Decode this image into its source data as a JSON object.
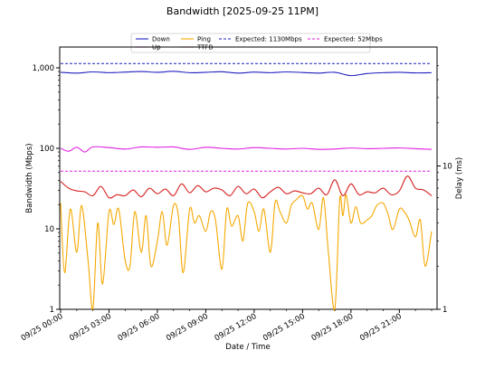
{
  "chart_data": {
    "type": "line",
    "title": "Bandwidth [2025-09-25 11PM]",
    "xlabel": "Date / Time",
    "ylabel_left": "Bandwidth (Mbps)",
    "ylabel_right": "Delay (ms)",
    "y_left_scale": "log",
    "y_left_range": [
      1,
      2000
    ],
    "y_left_ticks": [
      "1",
      "10",
      "100",
      "1,000"
    ],
    "y_right_scale": "log",
    "y_right_range": [
      1,
      50
    ],
    "y_right_ticks": [
      "1",
      "10"
    ],
    "x_range": [
      "2025-09-25 00:00",
      "2025-09-25 23:00"
    ],
    "x_ticks": [
      "09/25 00:00",
      "09/25 03:00",
      "09/25 06:00",
      "09/25 09:00",
      "09/25 12:00",
      "09/25 15:00",
      "09/25 18:00",
      "09/25 21:00"
    ],
    "grid": false,
    "legend_position": "top-center",
    "legend": [
      {
        "label": "Down",
        "color": "#1f1fbf",
        "style": "solid"
      },
      {
        "label": "Up",
        "color": "#e020e0",
        "style": "solid"
      },
      {
        "label": "Ping",
        "color": "#f5a800",
        "style": "solid"
      },
      {
        "label": "TTFB",
        "color": "#d62020",
        "style": "solid"
      },
      {
        "label": "Expected: 1130Mbps",
        "color": "#1f1fbf",
        "style": "dashed"
      },
      {
        "label": "Expected: 52Mbps",
        "color": "#e020e0",
        "style": "dashed"
      }
    ],
    "series": [
      {
        "name": "Down",
        "axis": "left",
        "color": "#1f1fbf",
        "x_hours": [
          0,
          1,
          2,
          3,
          4,
          5,
          6,
          7,
          8,
          9,
          10,
          11,
          12,
          13,
          14,
          15,
          16,
          17,
          18,
          19,
          20,
          21,
          22,
          23
        ],
        "values": [
          880,
          860,
          890,
          870,
          885,
          900,
          880,
          905,
          870,
          880,
          895,
          860,
          885,
          870,
          890,
          875,
          860,
          880,
          800,
          850,
          870,
          880,
          865,
          870
        ]
      },
      {
        "name": "Up",
        "axis": "left",
        "color": "#e020e0",
        "x_hours": [
          0,
          0.5,
          1,
          1.5,
          2,
          3,
          4,
          5,
          6,
          7,
          8,
          9,
          10,
          11,
          12,
          13,
          14,
          15,
          16,
          17,
          18,
          19,
          20,
          21,
          22,
          23
        ],
        "values": [
          100,
          92,
          103,
          90,
          104,
          102,
          98,
          104,
          103,
          104,
          97,
          103,
          100,
          98,
          102,
          100,
          98,
          100,
          97,
          98,
          101,
          99,
          100,
          101,
          99,
          97
        ]
      },
      {
        "name": "TTFB",
        "axis": "right",
        "color": "#d62020",
        "x_hours": [
          0,
          0.5,
          1,
          1.5,
          2,
          2.5,
          3,
          3.5,
          4,
          4.5,
          5,
          5.5,
          6,
          6.5,
          7,
          7.5,
          8,
          8.5,
          9,
          9.5,
          10,
          10.5,
          11,
          11.5,
          12,
          12.5,
          13,
          13.5,
          14,
          14.5,
          15,
          15.5,
          16,
          16.5,
          17,
          17.5,
          18,
          18.5,
          19,
          19.5,
          20,
          20.5,
          21,
          21.5,
          22,
          22.5,
          23
        ],
        "values": [
          7.8,
          7.0,
          6.7,
          6.6,
          6.2,
          7.2,
          6.0,
          6.3,
          6.2,
          6.8,
          6.1,
          7.0,
          6.4,
          6.9,
          6.2,
          7.5,
          6.5,
          7.3,
          6.6,
          7.0,
          6.8,
          6.2,
          7.2,
          6.4,
          6.9,
          6.0,
          6.6,
          7.1,
          6.4,
          6.7,
          6.5,
          6.4,
          7.0,
          6.3,
          8.0,
          6.2,
          7.5,
          6.3,
          6.6,
          6.5,
          7.0,
          6.3,
          6.7,
          8.5,
          7.0,
          6.8,
          6.2
        ]
      },
      {
        "name": "Ping",
        "axis": "right",
        "color": "#f5a800",
        "x_hours": [
          0,
          0.25,
          0.6,
          1,
          1.3,
          1.7,
          2,
          2.3,
          2.6,
          3,
          3.3,
          3.6,
          4,
          4.3,
          4.6,
          5,
          5.3,
          5.6,
          6,
          6.3,
          6.6,
          7,
          7.3,
          7.6,
          8,
          8.3,
          8.6,
          9,
          9.3,
          9.6,
          10,
          10.3,
          10.6,
          11,
          11.3,
          11.6,
          12,
          12.3,
          12.6,
          13,
          13.3,
          13.6,
          14,
          14.3,
          14.6,
          15,
          15.3,
          15.6,
          16,
          16.3,
          16.6,
          17,
          17.3,
          17.5,
          17.7,
          18,
          18.3,
          18.6,
          19,
          19.3,
          19.6,
          20,
          20.3,
          20.6,
          21,
          21.3,
          21.6,
          22,
          22.3,
          22.6,
          23
        ],
        "values": [
          5.5,
          1.8,
          5.0,
          2.5,
          5.3,
          2.2,
          1.0,
          4.0,
          1.5,
          4.8,
          3.9,
          5.0,
          2.2,
          2.0,
          4.8,
          2.5,
          4.5,
          2.0,
          3.0,
          4.8,
          2.8,
          5.3,
          4.5,
          1.8,
          5.0,
          4.0,
          4.5,
          3.5,
          4.8,
          4.2,
          1.9,
          5.0,
          3.8,
          4.5,
          3.0,
          5.5,
          4.8,
          3.5,
          5.0,
          2.5,
          5.6,
          4.8,
          4.0,
          5.3,
          5.8,
          6.2,
          5.0,
          5.5,
          3.6,
          6.0,
          2.5,
          1.0,
          5.8,
          4.5,
          6.3,
          4.0,
          5.2,
          4.0,
          4.2,
          4.5,
          5.3,
          5.5,
          4.6,
          3.6,
          5.0,
          4.8,
          4.2,
          3.2,
          4.2,
          2.0,
          3.5
        ]
      },
      {
        "name": "Expected: 1130Mbps",
        "axis": "left",
        "color": "#1f1fbf",
        "dashed": true,
        "x_hours": [
          0,
          23
        ],
        "values": [
          1130,
          1130
        ]
      },
      {
        "name": "Expected: 52Mbps",
        "axis": "left",
        "color": "#e020e0",
        "dashed": true,
        "x_hours": [
          0,
          23
        ],
        "values": [
          52,
          52
        ]
      }
    ]
  }
}
